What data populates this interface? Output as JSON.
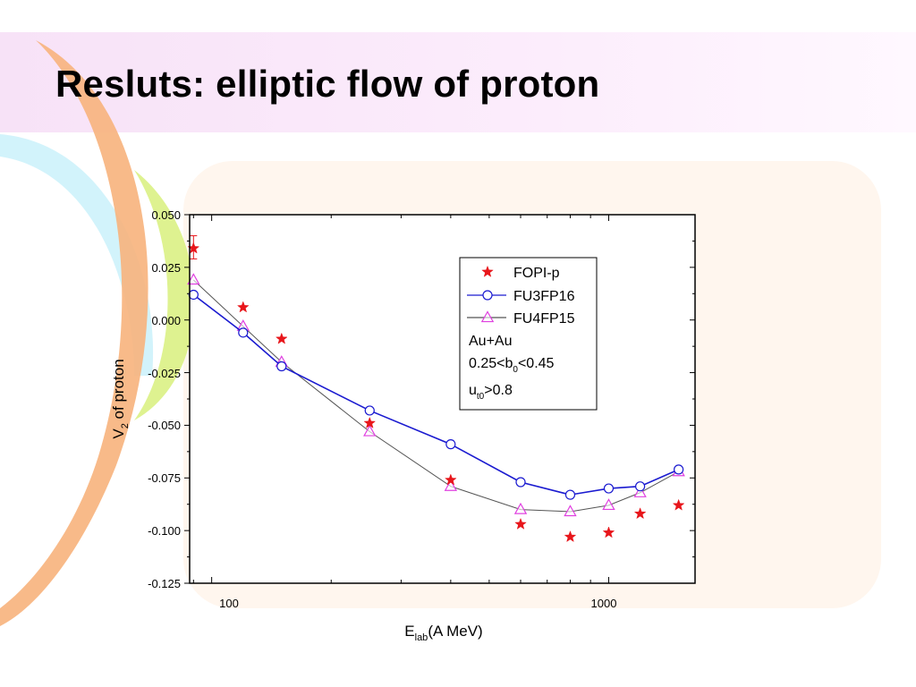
{
  "slide": {
    "title": "Resluts: elliptic flow of proton",
    "colors": {
      "banner": "#fbe9fb",
      "panel": "#fff6ee",
      "arc_orange": "#f6b07a",
      "arc_cyan": "#c9f3fb",
      "arc_green": "#d6f27a"
    }
  },
  "chart_data": {
    "type": "scatter",
    "xlabel_main": "E",
    "xlabel_sub": "lab",
    "xlabel_tail": "(A MeV)",
    "ylabel_main": "V",
    "ylabel_sub": "2",
    "ylabel_tail": " of proton",
    "x_scale": "log",
    "xlim": [
      88,
      1650
    ],
    "ylim": [
      -0.125,
      0.05
    ],
    "x_tick_labels": [
      "100",
      "1000"
    ],
    "y_tick_labels": [
      "0.050",
      "0.025",
      "0.000",
      "-0.025",
      "-0.050",
      "-0.075",
      "-0.100",
      "-0.125"
    ],
    "grid": false,
    "legend_position": "top-right",
    "series": [
      {
        "name": "FOPI-p",
        "marker": "star",
        "color": "#e8161b",
        "line": false,
        "x": [
          90,
          120,
          150,
          250,
          400,
          600,
          800,
          1000,
          1200,
          1500
        ],
        "y": [
          0.034,
          0.006,
          -0.009,
          -0.049,
          -0.076,
          -0.097,
          -0.103,
          -0.101,
          -0.092,
          -0.088
        ],
        "error_bar": {
          "x": 90,
          "low": 0.029,
          "high": 0.04
        }
      },
      {
        "name": "FU3FP16",
        "marker": "circle",
        "color": "#1a1ad0",
        "line": true,
        "x": [
          90,
          120,
          150,
          250,
          400,
          600,
          800,
          1000,
          1200,
          1500
        ],
        "y": [
          0.012,
          -0.006,
          -0.022,
          -0.043,
          -0.059,
          -0.077,
          -0.083,
          -0.08,
          -0.079,
          -0.071
        ]
      },
      {
        "name": "FU4FP15",
        "marker": "triangle",
        "color": "#e040e0",
        "line_color": "#555555",
        "line": true,
        "x": [
          90,
          120,
          150,
          250,
          400,
          600,
          800,
          1000,
          1200,
          1500
        ],
        "y": [
          0.019,
          -0.003,
          -0.02,
          -0.053,
          -0.079,
          -0.09,
          -0.091,
          -0.088,
          -0.082,
          -0.072
        ]
      }
    ],
    "annotations": {
      "system": "Au+Au",
      "b_prefix": "0.25<b",
      "b_sub": "0",
      "b_suffix": "<0.45",
      "u_prefix": "u",
      "u_sub": "t0",
      "u_suffix": ">0.8"
    }
  }
}
